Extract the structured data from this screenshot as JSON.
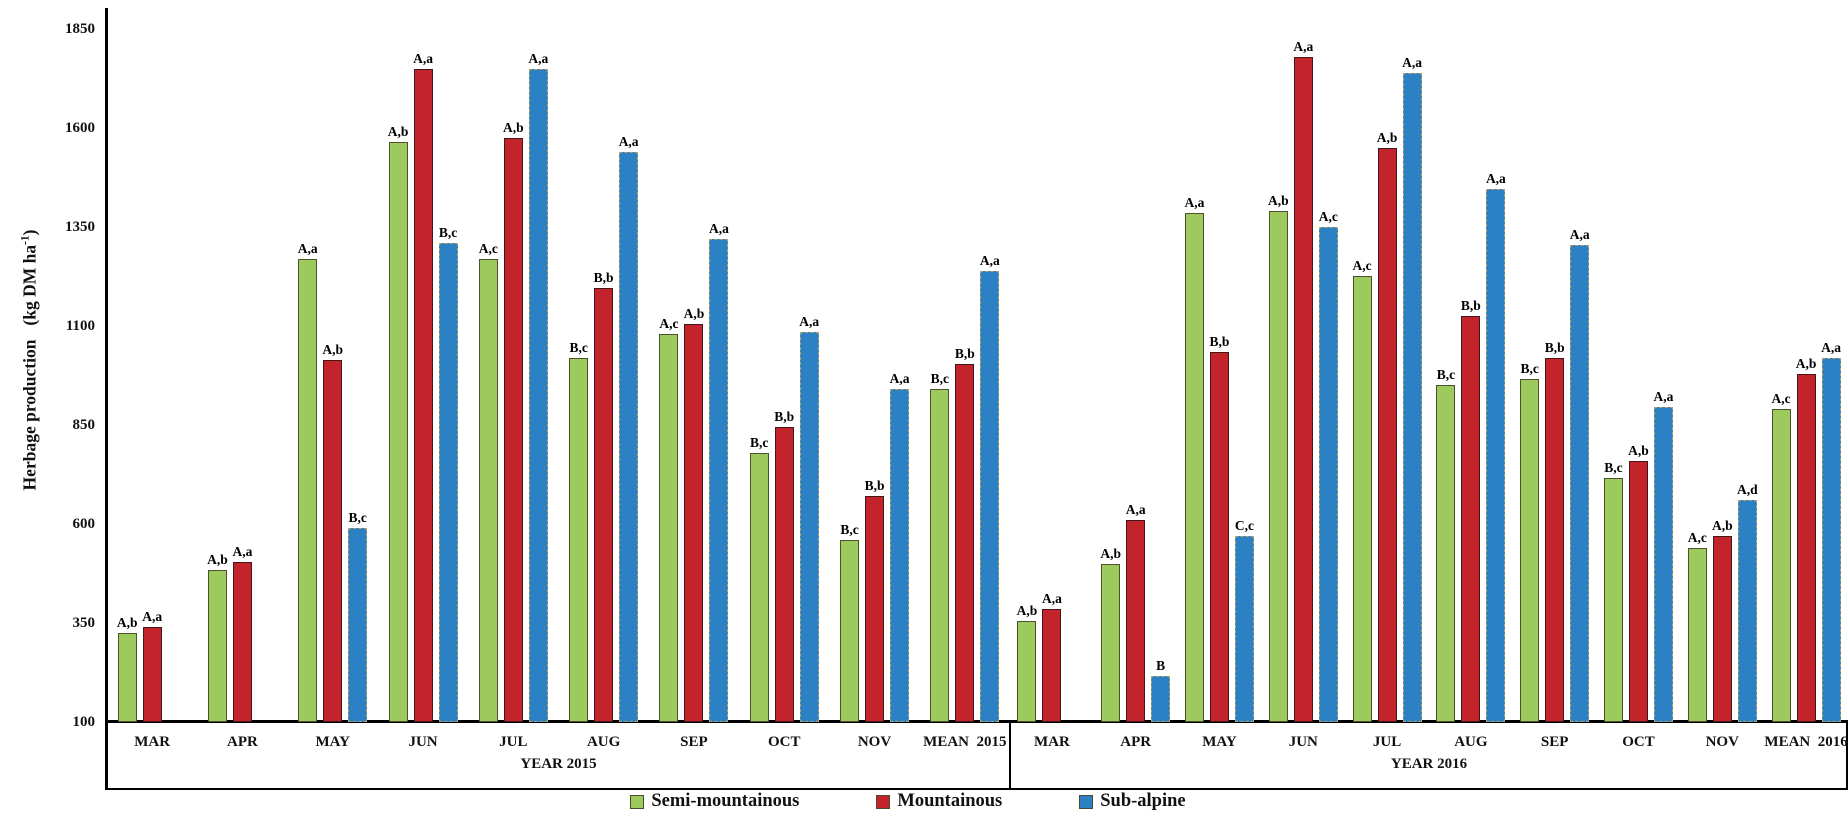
{
  "chart_data": {
    "type": "bar",
    "title": "",
    "ylabel": {
      "main": "Herbage production",
      "unit_prefix": "(kg DM ha",
      "unit_sup": "-1",
      "unit_suffix": ")"
    },
    "ylim": [
      100,
      1850
    ],
    "yticks": [
      1850,
      1600,
      1350,
      1100,
      850,
      600,
      350,
      100
    ],
    "grid": false,
    "legend_position": "bottom-center",
    "series_names": [
      "Semi-mountainous",
      "Mountainous",
      "Sub-alpine"
    ],
    "series_colors": {
      "semi_mountainous": "#9CCA5D",
      "mountainous": "#C3242B",
      "sub_alpine": "#2C80C4"
    },
    "sections": [
      {
        "year_label": "YEAR 2015",
        "groups": [
          {
            "month": "MAR",
            "values": [
              325,
              340,
              null
            ],
            "sig": [
              "A,b",
              "A,a",
              null
            ]
          },
          {
            "month": "APR",
            "values": [
              485,
              505,
              null
            ],
            "sig": [
              "A,b",
              "A,a",
              null
            ]
          },
          {
            "month": "MAY",
            "values": [
              1270,
              1015,
              590
            ],
            "sig": [
              "A,a",
              "A,b",
              "B,c"
            ]
          },
          {
            "month": "JUN",
            "values": [
              1565,
              1750,
              1310
            ],
            "sig": [
              "A,b",
              "A,a",
              "B,c"
            ]
          },
          {
            "month": "JUL",
            "values": [
              1270,
              1575,
              1750
            ],
            "sig": [
              "A,c",
              "A,b",
              "A,a"
            ]
          },
          {
            "month": "AUG",
            "values": [
              1020,
              1195,
              1540
            ],
            "sig": [
              "B,c",
              "B,b",
              "A,a"
            ]
          },
          {
            "month": "SEP",
            "values": [
              1080,
              1105,
              1320
            ],
            "sig": [
              "A,c",
              "A,b",
              "A,a"
            ]
          },
          {
            "month": "OCT",
            "values": [
              780,
              845,
              1085
            ],
            "sig": [
              "B,c",
              "B,b",
              "A,a"
            ]
          },
          {
            "month": "NOV",
            "values": [
              560,
              670,
              940
            ],
            "sig": [
              "B,c",
              "B,b",
              "A,a"
            ]
          },
          {
            "month": "MEAN  2015",
            "values": [
              940,
              1005,
              1240
            ],
            "sig": [
              "B,c",
              "B,b",
              "A,a"
            ]
          }
        ]
      },
      {
        "year_label": "YEAR 2016",
        "groups": [
          {
            "month": "MAR",
            "values": [
              355,
              385,
              null
            ],
            "sig": [
              "A,b",
              "A,a",
              null
            ]
          },
          {
            "month": "APR",
            "values": [
              500,
              610,
              215
            ],
            "sig": [
              "A,b",
              "A,a",
              "B"
            ]
          },
          {
            "month": "MAY",
            "values": [
              1385,
              1035,
              570
            ],
            "sig": [
              "A,a",
              "B,b",
              "C,c"
            ]
          },
          {
            "month": "JUN",
            "values": [
              1390,
              1780,
              1350
            ],
            "sig": [
              "A,b",
              "A,a",
              "A,c"
            ]
          },
          {
            "month": "JUL",
            "values": [
              1225,
              1550,
              1740
            ],
            "sig": [
              "A,c",
              "A,b",
              "A,a"
            ]
          },
          {
            "month": "AUG",
            "values": [
              950,
              1125,
              1445
            ],
            "sig": [
              "B,c",
              "B,b",
              "A,a"
            ]
          },
          {
            "month": "SEP",
            "values": [
              965,
              1020,
              1305
            ],
            "sig": [
              "B,c",
              "B,b",
              "A,a"
            ]
          },
          {
            "month": "OCT",
            "values": [
              715,
              760,
              895
            ],
            "sig": [
              "B,c",
              "A,b",
              "A,a"
            ]
          },
          {
            "month": "NOV",
            "values": [
              540,
              570,
              660
            ],
            "sig": [
              "A,c",
              "A,b",
              "A,d"
            ]
          },
          {
            "month": "MEAN  2016",
            "values": [
              890,
              980,
              1020
            ],
            "sig": [
              "A,c",
              "A,b",
              "A,a"
            ]
          }
        ]
      }
    ]
  },
  "legend": {
    "items": [
      {
        "label": "Semi-mountainous",
        "color": "#9CCA5D"
      },
      {
        "label": "Mountainous",
        "color": "#C3242B"
      },
      {
        "label": "Sub-alpine",
        "color": "#2C80C4"
      }
    ]
  }
}
